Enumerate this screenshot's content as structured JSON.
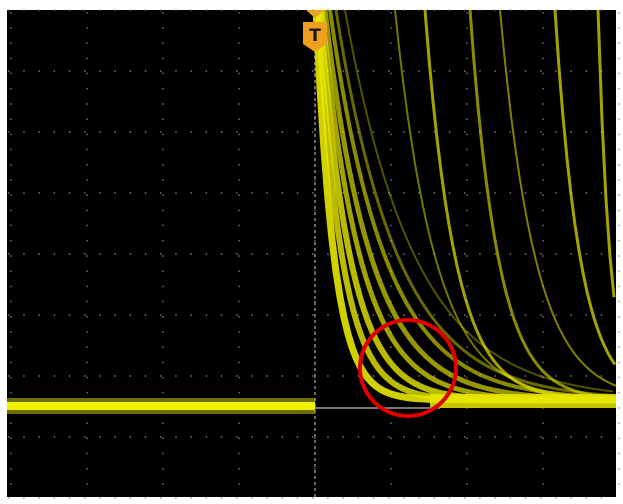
{
  "trigger": {
    "label": "T"
  }
}
